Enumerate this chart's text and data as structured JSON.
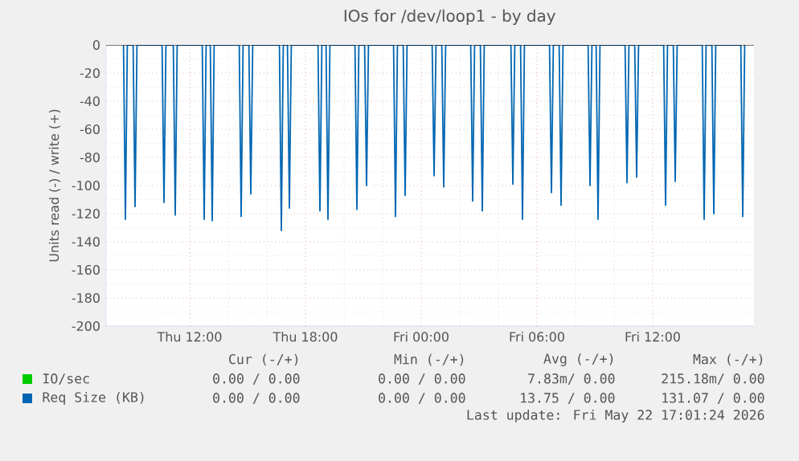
{
  "chart_data": {
    "type": "line",
    "title": "IOs for /dev/loop1 - by day",
    "ylabel": "Units read (-) / write (+)",
    "xlim": [
      "2026-05-21T07:40",
      "2026-05-22T17:15"
    ],
    "ylim": [
      -200,
      0
    ],
    "xticks": [
      {
        "value": "2026-05-21T12:00",
        "label": "Thu 12:00"
      },
      {
        "value": "2026-05-21T18:00",
        "label": "Thu 18:00"
      },
      {
        "value": "2026-05-22T00:00",
        "label": "Fri 00:00"
      },
      {
        "value": "2026-05-22T06:00",
        "label": "Fri 06:00"
      },
      {
        "value": "2026-05-22T12:00",
        "label": "Fri 12:00"
      }
    ],
    "yticks": [
      0,
      -20,
      -40,
      -60,
      -80,
      -100,
      -120,
      -140,
      -160,
      -180,
      -200
    ],
    "grid": true,
    "legend": "bottom",
    "marker": "none",
    "line_style": "solid",
    "series": [
      {
        "name": "IO/sec",
        "color": "#00cc00"
      },
      {
        "name": "Req Size (KB)",
        "color": "#0066b3",
        "x": [
          "2026-05-21T08:34",
          "2026-05-21T08:40",
          "2026-05-21T08:46",
          "2026-05-21T09:04",
          "2026-05-21T09:10",
          "2026-05-21T09:16",
          "2026-05-21T10:34",
          "2026-05-21T10:40",
          "2026-05-21T10:46",
          "2026-05-21T11:09",
          "2026-05-21T11:15",
          "2026-05-21T11:21",
          "2026-05-21T12:39",
          "2026-05-21T12:45",
          "2026-05-21T12:51",
          "2026-05-21T13:04",
          "2026-05-21T13:10",
          "2026-05-21T13:16",
          "2026-05-21T14:34",
          "2026-05-21T14:40",
          "2026-05-21T14:46",
          "2026-05-21T15:04",
          "2026-05-21T15:10",
          "2026-05-21T15:16",
          "2026-05-21T16:39",
          "2026-05-21T16:45",
          "2026-05-21T16:51",
          "2026-05-21T17:04",
          "2026-05-21T17:10",
          "2026-05-21T17:16",
          "2026-05-21T18:39",
          "2026-05-21T18:45",
          "2026-05-21T18:51",
          "2026-05-21T19:04",
          "2026-05-21T19:10",
          "2026-05-21T19:16",
          "2026-05-21T20:34",
          "2026-05-21T20:40",
          "2026-05-21T20:46",
          "2026-05-21T21:04",
          "2026-05-21T21:10",
          "2026-05-21T21:16",
          "2026-05-21T22:34",
          "2026-05-21T22:40",
          "2026-05-21T22:46",
          "2026-05-21T23:04",
          "2026-05-21T23:10",
          "2026-05-21T23:16",
          "2026-05-22T00:34",
          "2026-05-22T00:40",
          "2026-05-22T00:46",
          "2026-05-22T01:04",
          "2026-05-22T01:10",
          "2026-05-22T01:16",
          "2026-05-22T02:34",
          "2026-05-22T02:40",
          "2026-05-22T02:46",
          "2026-05-22T03:04",
          "2026-05-22T03:10",
          "2026-05-22T03:16",
          "2026-05-22T04:39",
          "2026-05-22T04:45",
          "2026-05-22T04:51",
          "2026-05-22T05:09",
          "2026-05-22T05:15",
          "2026-05-22T05:21",
          "2026-05-22T06:39",
          "2026-05-22T06:45",
          "2026-05-22T06:51",
          "2026-05-22T07:09",
          "2026-05-22T07:15",
          "2026-05-22T07:21",
          "2026-05-22T08:39",
          "2026-05-22T08:45",
          "2026-05-22T08:51",
          "2026-05-22T09:04",
          "2026-05-22T09:10",
          "2026-05-22T09:16",
          "2026-05-22T10:34",
          "2026-05-22T10:40",
          "2026-05-22T10:46",
          "2026-05-22T11:04",
          "2026-05-22T11:10",
          "2026-05-22T11:16",
          "2026-05-22T12:34",
          "2026-05-22T12:40",
          "2026-05-22T12:46",
          "2026-05-22T13:04",
          "2026-05-22T13:10",
          "2026-05-22T13:16",
          "2026-05-22T14:34",
          "2026-05-22T14:40",
          "2026-05-22T14:46",
          "2026-05-22T15:04",
          "2026-05-22T15:10",
          "2026-05-22T15:16",
          "2026-05-22T16:34",
          "2026-05-22T16:40",
          "2026-05-22T16:46"
        ],
        "values": [
          0,
          -124,
          0,
          0,
          -115,
          0,
          0,
          -112,
          0,
          0,
          -121,
          0,
          0,
          -124,
          0,
          0,
          -125,
          0,
          0,
          -122,
          0,
          0,
          -106,
          0,
          0,
          -132,
          0,
          0,
          -116,
          0,
          0,
          -118,
          0,
          0,
          -124,
          0,
          0,
          -117,
          0,
          0,
          -100,
          0,
          0,
          -122,
          0,
          0,
          -107,
          0,
          0,
          -93,
          0,
          0,
          -101,
          0,
          0,
          -111,
          0,
          0,
          -118,
          0,
          0,
          -99,
          0,
          0,
          -124,
          0,
          0,
          -105,
          0,
          0,
          -114,
          0,
          0,
          -100,
          0,
          0,
          -124,
          0,
          0,
          -98,
          0,
          0,
          -94,
          0,
          0,
          -114,
          0,
          0,
          -97,
          0,
          0,
          -124,
          0,
          0,
          -120,
          0,
          0,
          -122,
          0
        ]
      }
    ],
    "annotations": [
      "Cur (-/+)",
      "Min (-/+)",
      "Avg (-/+)",
      "Max (-/+)",
      "0.00 / 0.00",
      "0.00 / 0.00",
      "7.83m/ 0.00",
      "215.18m/ 0.00",
      "0.00 / 0.00",
      "0.00 / 0.00",
      "13.75 / 0.00",
      "131.07 / 0.00",
      "Last update: Fri May 22 17:01:24 2026"
    ]
  }
}
